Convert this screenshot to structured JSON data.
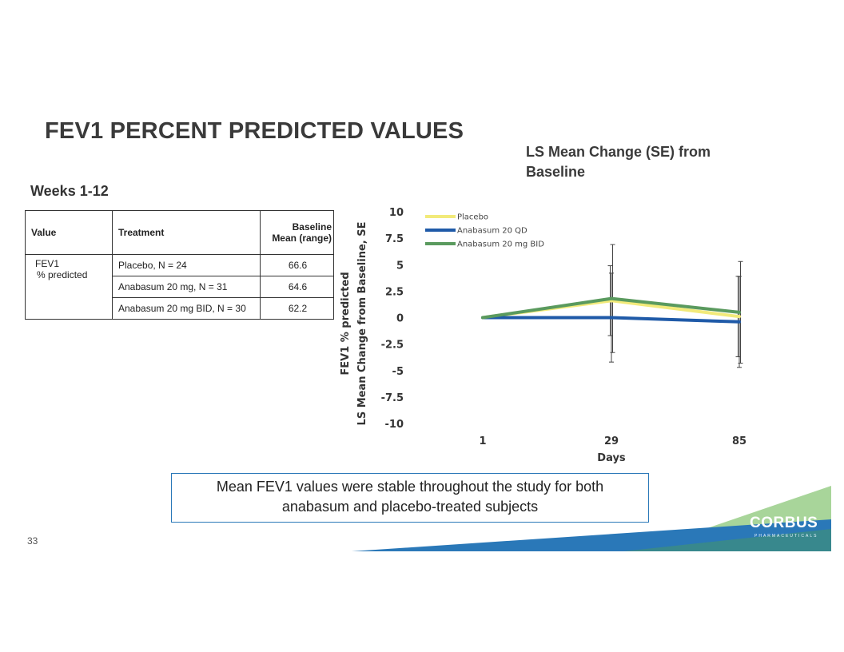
{
  "page": {
    "title": "FEV1 PERCENT PREDICTED VALUES",
    "period": "Weeks 1-12",
    "page_number": "33",
    "callout_line1": "Mean FEV1 values were stable throughout the study for both",
    "callout_line2": "anabasum and placebo-treated subjects",
    "logo_text": "CORBUS",
    "logo_subtext": "PHARMACEUTICALS"
  },
  "table": {
    "headers": [
      "Value",
      "Treatment",
      "Baseline",
      "Mean (range)"
    ],
    "value_label_line1": "FEV1",
    "value_label_line2": "% predicted",
    "rows": [
      {
        "treatment": "Placebo, N = 24",
        "baseline": "66.6"
      },
      {
        "treatment": "Anabasum 20 mg, N = 31",
        "baseline": "64.6"
      },
      {
        "treatment": "Anabasum 20 mg BID, N = 30",
        "baseline": "62.2"
      }
    ]
  },
  "chart_data": {
    "type": "line",
    "title_line1": "LS Mean Change (SE) from",
    "title_line2": "Baseline",
    "xlabel": "Days",
    "ylabel_line1": "FEV1 % predicted",
    "ylabel_line2": "LS Mean Change from Baseline, SE",
    "x": [
      1,
      29,
      85
    ],
    "x_tick_labels": [
      "1",
      "29",
      "85"
    ],
    "ylim": [
      -10,
      10
    ],
    "y_ticks": [
      10,
      7.5,
      5,
      2.5,
      0,
      -2.5,
      -5,
      -7.5,
      -10
    ],
    "y_tick_labels": [
      "10",
      "7.5",
      "5",
      "2.5",
      "0",
      "-2.5",
      "-5",
      "-7.5",
      "-10"
    ],
    "grid": false,
    "legend_position": "top-left",
    "series": [
      {
        "name": "Placebo",
        "color": "#f2ea7a",
        "values": [
          0,
          1.6,
          0.1
        ],
        "se": [
          0,
          3.3,
          3.8
        ]
      },
      {
        "name": "Anabasum 20 QD",
        "color": "#1f5aa8",
        "values": [
          0,
          0,
          -0.4
        ],
        "se": [
          0,
          4.2,
          4.3
        ]
      },
      {
        "name": "Anabasum 20 mg BID",
        "color": "#5a9a5e",
        "values": [
          0,
          1.8,
          0.5
        ],
        "se": [
          0,
          5.1,
          4.8
        ]
      }
    ]
  }
}
